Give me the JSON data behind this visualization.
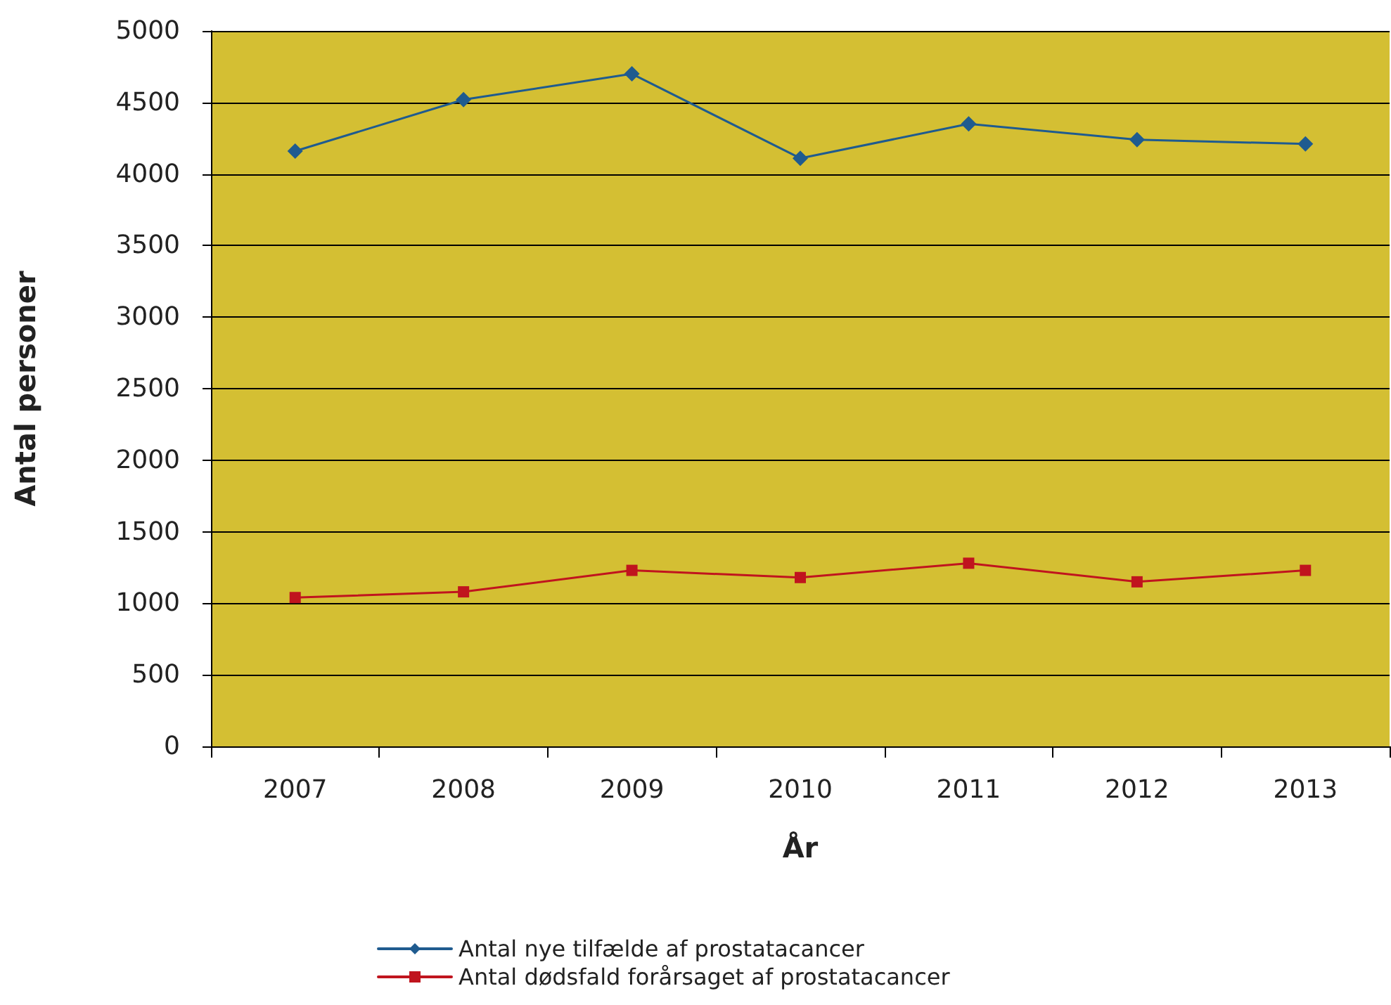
{
  "chart_data": {
    "type": "line",
    "xlabel": "År",
    "ylabel": "Antal personer",
    "categories": [
      "2007",
      "2008",
      "2009",
      "2010",
      "2011",
      "2012",
      "2013"
    ],
    "series": [
      {
        "name": "Antal nye tilfælde af prostatacancer",
        "color": "#1f5b8f",
        "marker": "diamond",
        "values": [
          4160,
          4520,
          4700,
          4110,
          4350,
          4240,
          4210
        ]
      },
      {
        "name": "Antal dødsfald forårsaget af prostatacancer",
        "color": "#c0141e",
        "marker": "square",
        "values": [
          1040,
          1080,
          1230,
          1180,
          1280,
          1150,
          1230
        ]
      }
    ],
    "ylim": [
      0,
      5000
    ],
    "yticks": [
      0,
      500,
      1000,
      1500,
      2000,
      2500,
      3000,
      3500,
      4000,
      4500,
      5000
    ],
    "grid": "y",
    "legend": "bottom",
    "line_style": "solid"
  }
}
